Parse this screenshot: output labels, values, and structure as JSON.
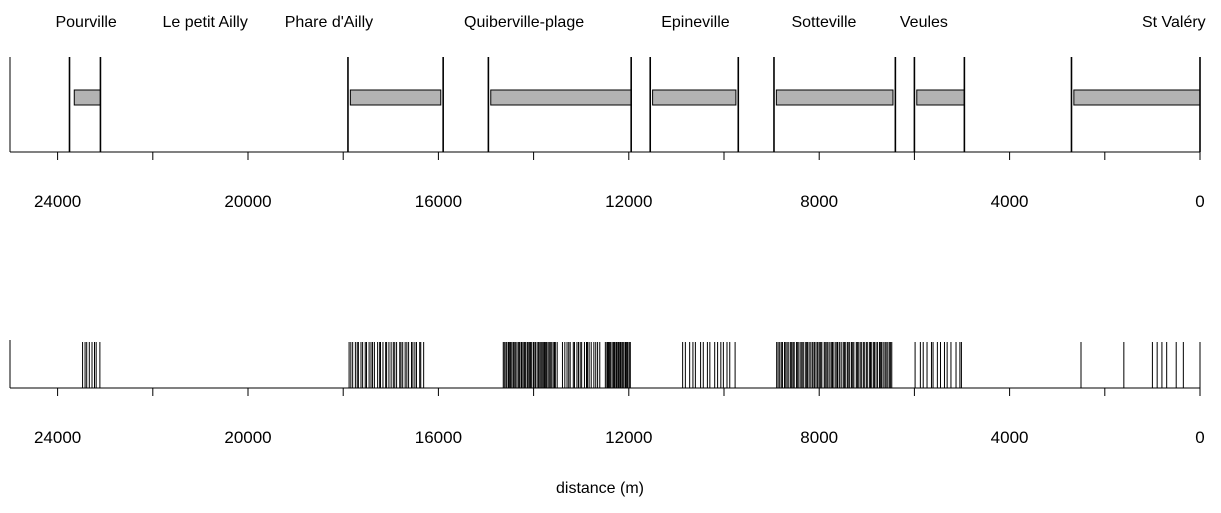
{
  "chart_data": [
    {
      "type": "bar",
      "description_panel": "top",
      "x_direction": "reversed",
      "xlim": [
        25000,
        0
      ],
      "x_ticks": [
        24000,
        22000,
        20000,
        18000,
        16000,
        14000,
        12000,
        10000,
        8000,
        6000,
        4000,
        2000,
        0
      ],
      "x_tick_labels": [
        "24000",
        "20000",
        "16000",
        "12000",
        "8000",
        "4000",
        "0"
      ],
      "x_labeled_ticks": [
        24000,
        20000,
        16000,
        12000,
        8000,
        4000,
        0
      ],
      "place_labels": [
        {
          "text": "Pourville",
          "x": 23400
        },
        {
          "text": "Le petit Ailly",
          "x": 20900
        },
        {
          "text": "Phare d'Ailly",
          "x": 18300
        },
        {
          "text": "Quiberville-plage",
          "x": 14200
        },
        {
          "text": "Epineville",
          "x": 10600
        },
        {
          "text": "Sotteville",
          "x": 7900
        },
        {
          "text": "Veules",
          "x": 5800
        },
        {
          "text": "St Valéry",
          "x": 550
        }
      ],
      "boundaries": [
        23750,
        23100,
        17900,
        15900,
        14950,
        11950,
        11550,
        9700,
        8950,
        6400,
        6000,
        4950,
        2700,
        0
      ],
      "bars": [
        {
          "start": 23650,
          "end": 23100
        },
        {
          "start": 17850,
          "end": 15950
        },
        {
          "start": 14900,
          "end": 11950
        },
        {
          "start": 11500,
          "end": 9750
        },
        {
          "start": 8900,
          "end": 6450
        },
        {
          "start": 5950,
          "end": 4950
        },
        {
          "start": 2650,
          "end": 0
        }
      ],
      "bar_color": "#b3b3b3"
    },
    {
      "type": "event",
      "description_panel": "bottom",
      "x_direction": "reversed",
      "xlim": [
        25000,
        0
      ],
      "x_ticks": [
        24000,
        22000,
        20000,
        18000,
        16000,
        14000,
        12000,
        10000,
        8000,
        6000,
        4000,
        2000,
        0
      ],
      "x_tick_labels": [
        "24000",
        "20000",
        "16000",
        "12000",
        "8000",
        "4000",
        "0"
      ],
      "x_labeled_ticks": [
        24000,
        20000,
        16000,
        12000,
        8000,
        4000,
        0
      ],
      "xlabel": "distance (m)",
      "clusters": [
        {
          "start": 23500,
          "end": 23100,
          "count": 8
        },
        {
          "start": 17900,
          "end": 16300,
          "count": 38
        },
        {
          "start": 14650,
          "end": 13500,
          "count": 44
        },
        {
          "start": 13400,
          "end": 12600,
          "count": 20
        },
        {
          "start": 12500,
          "end": 11950,
          "count": 24
        },
        {
          "start": 10900,
          "end": 9750,
          "count": 16
        },
        {
          "start": 8900,
          "end": 6450,
          "count": 80
        },
        {
          "start": 6000,
          "end": 4950,
          "count": 14
        }
      ],
      "single_lines": [
        2500,
        1600,
        1000,
        900,
        800,
        700,
        500,
        350,
        0
      ]
    }
  ]
}
